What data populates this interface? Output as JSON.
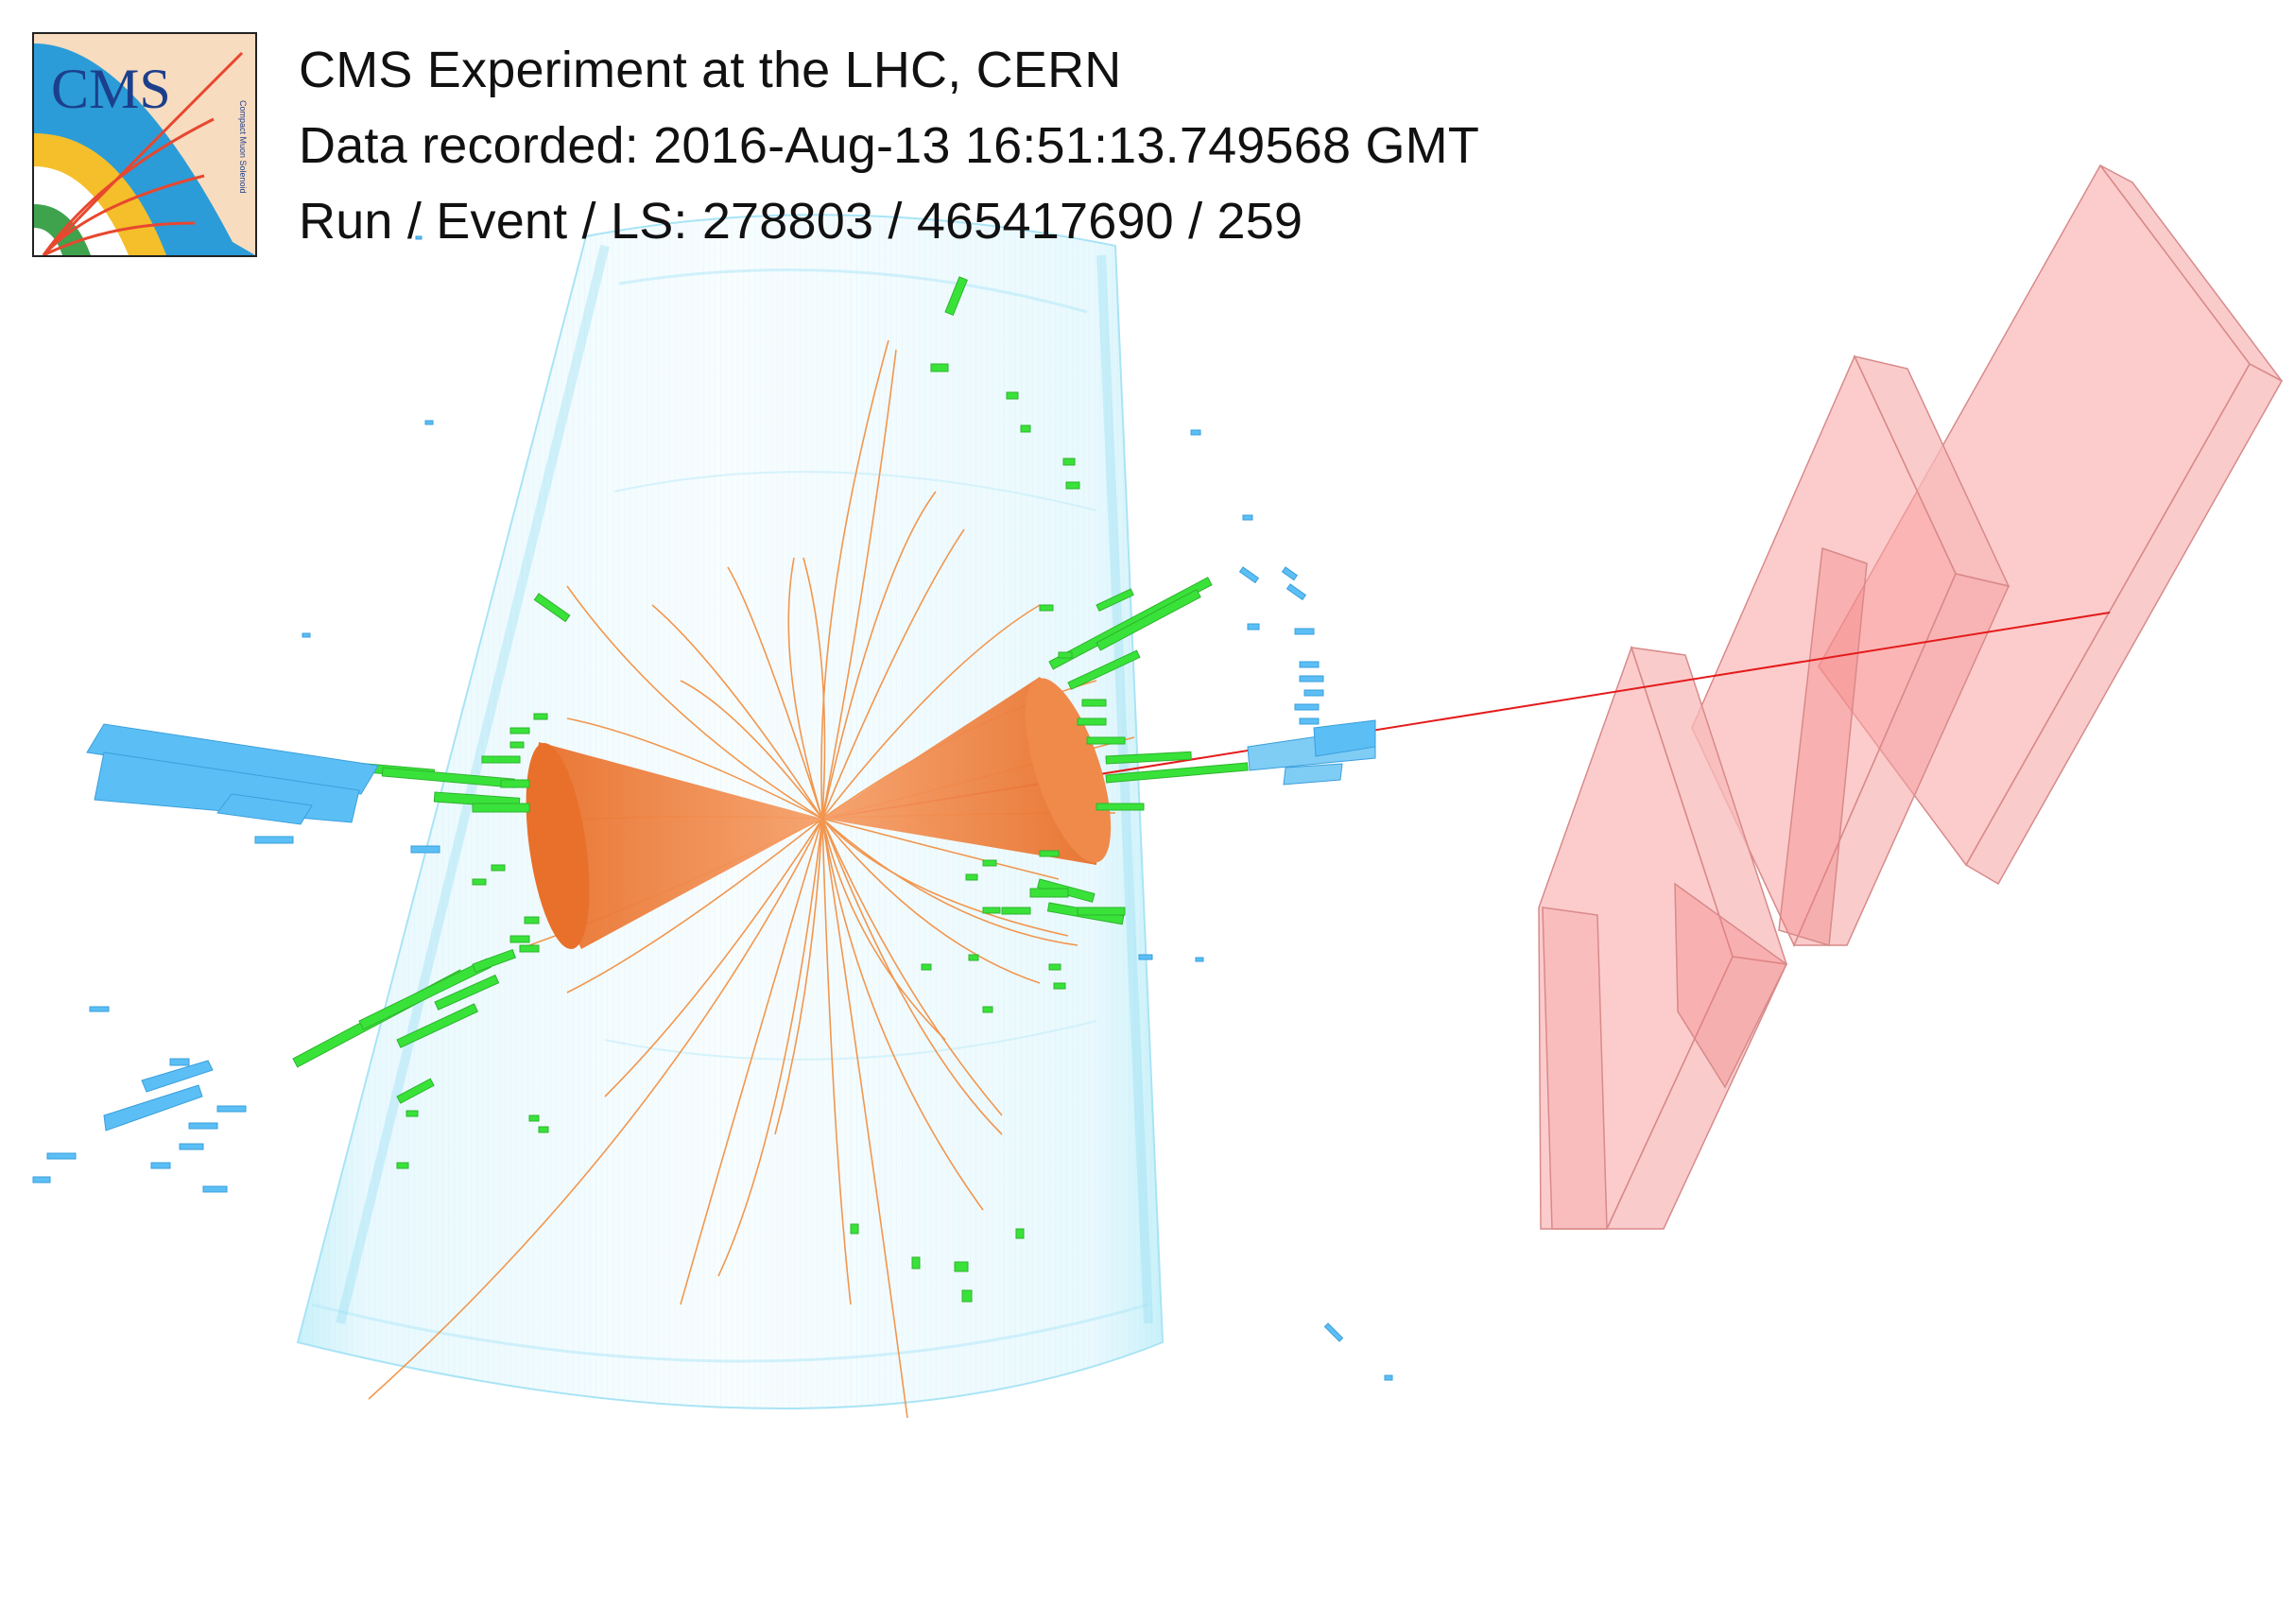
{
  "header": {
    "experiment_line": "CMS Experiment at the LHC, CERN",
    "recorded_line": "Data recorded: 2016-Aug-13 16:51:13.749568 GMT",
    "run_event_line": "Run / Event / LS: 278803 / 465417690 / 259"
  },
  "logo": {
    "text": "CMS",
    "subtitle": "Compact Muon Solenoid"
  },
  "colors": {
    "tracker": "#cfeefb",
    "tracks": "#f28c3c",
    "jets": "#f28a45",
    "ecal": "#39e239",
    "hcal": "#4db8f2",
    "muon_chambers": "#f9a3a3",
    "muon_track": "#e41b1b"
  }
}
